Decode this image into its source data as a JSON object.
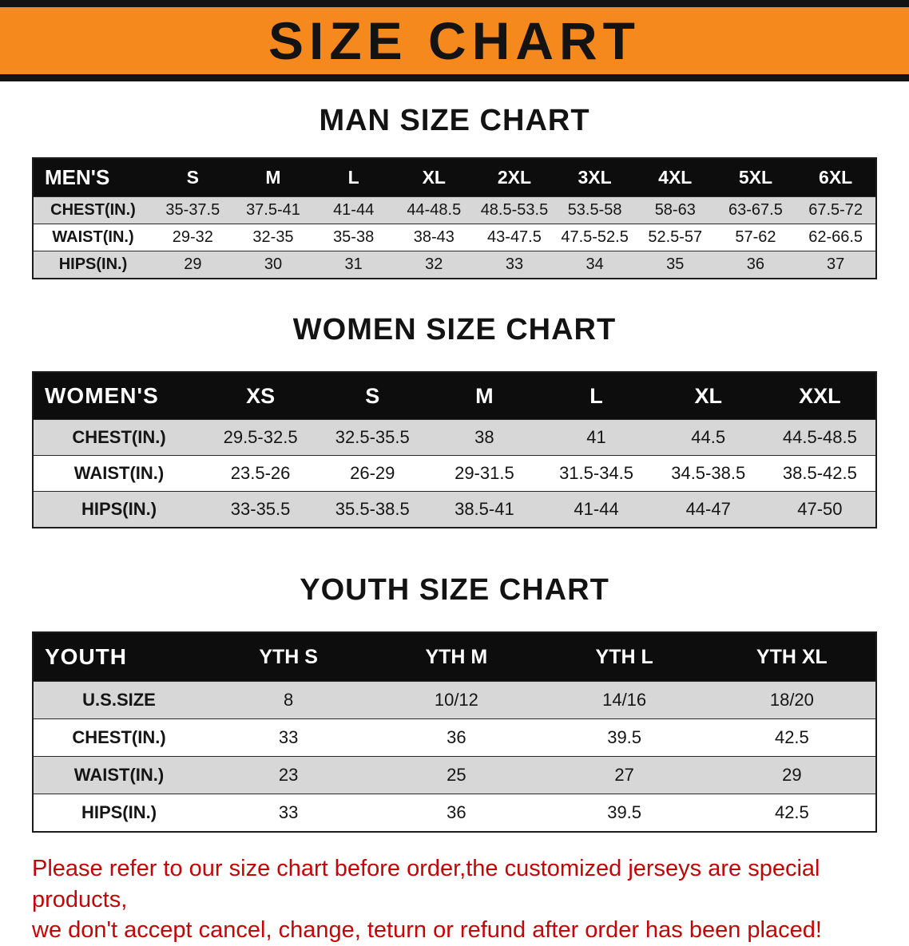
{
  "banner": {
    "title": "SIZE CHART"
  },
  "colors": {
    "banner_orange": "#f6891e",
    "banner_border_black": "#131313",
    "table_header_black": "#0d0d0d",
    "row_gray": "#d7d7d7",
    "footer_red": "#c40606"
  },
  "sections": [
    {
      "heading": "MAN SIZE CHART",
      "table": {
        "corner": "MEN'S",
        "columns": [
          "S",
          "M",
          "L",
          "XL",
          "2XL",
          "3XL",
          "4XL",
          "5XL",
          "6XL"
        ],
        "rows": [
          {
            "label": "CHEST(IN.)",
            "values": [
              "35-37.5",
              "37.5-41",
              "41-44",
              "44-48.5",
              "48.5-53.5",
              "53.5-58",
              "58-63",
              "63-67.5",
              "67.5-72"
            ]
          },
          {
            "label": "WAIST(IN.)",
            "values": [
              "29-32",
              "32-35",
              "35-38",
              "38-43",
              "43-47.5",
              "47.5-52.5",
              "52.5-57",
              "57-62",
              "62-66.5"
            ]
          },
          {
            "label": "HIPS(IN.)",
            "values": [
              "29",
              "30",
              "31",
              "32",
              "33",
              "34",
              "35",
              "36",
              "37"
            ]
          }
        ]
      }
    },
    {
      "heading": "WOMEN SIZE CHART",
      "table": {
        "corner": "WOMEN'S",
        "columns": [
          "XS",
          "S",
          "M",
          "L",
          "XL",
          "XXL"
        ],
        "rows": [
          {
            "label": "CHEST(IN.)",
            "values": [
              "29.5-32.5",
              "32.5-35.5",
              "38",
              "41",
              "44.5",
              "44.5-48.5"
            ]
          },
          {
            "label": "WAIST(IN.)",
            "values": [
              "23.5-26",
              "26-29",
              "29-31.5",
              "31.5-34.5",
              "34.5-38.5",
              "38.5-42.5"
            ]
          },
          {
            "label": "HIPS(IN.)",
            "values": [
              "33-35.5",
              "35.5-38.5",
              "38.5-41",
              "41-44",
              "44-47",
              "47-50"
            ]
          }
        ]
      }
    },
    {
      "heading": "YOUTH SIZE CHART",
      "table": {
        "corner": "YOUTH",
        "columns": [
          "YTH S",
          "YTH M",
          "YTH L",
          "YTH XL"
        ],
        "rows": [
          {
            "label": "U.S.SIZE",
            "values": [
              "8",
              "10/12",
              "14/16",
              "18/20"
            ]
          },
          {
            "label": "CHEST(IN.)",
            "values": [
              "33",
              "36",
              "39.5",
              "42.5"
            ]
          },
          {
            "label": "WAIST(IN.)",
            "values": [
              "23",
              "25",
              "27",
              "29"
            ]
          },
          {
            "label": "HIPS(IN.)",
            "values": [
              "33",
              "36",
              "39.5",
              "42.5"
            ]
          }
        ]
      }
    }
  ],
  "footer": {
    "line1": "Please refer to our size chart before order,the customized jerseys are special products,",
    "line2": "we don't accept cancel, change, teturn or refund after order has been placed!"
  }
}
